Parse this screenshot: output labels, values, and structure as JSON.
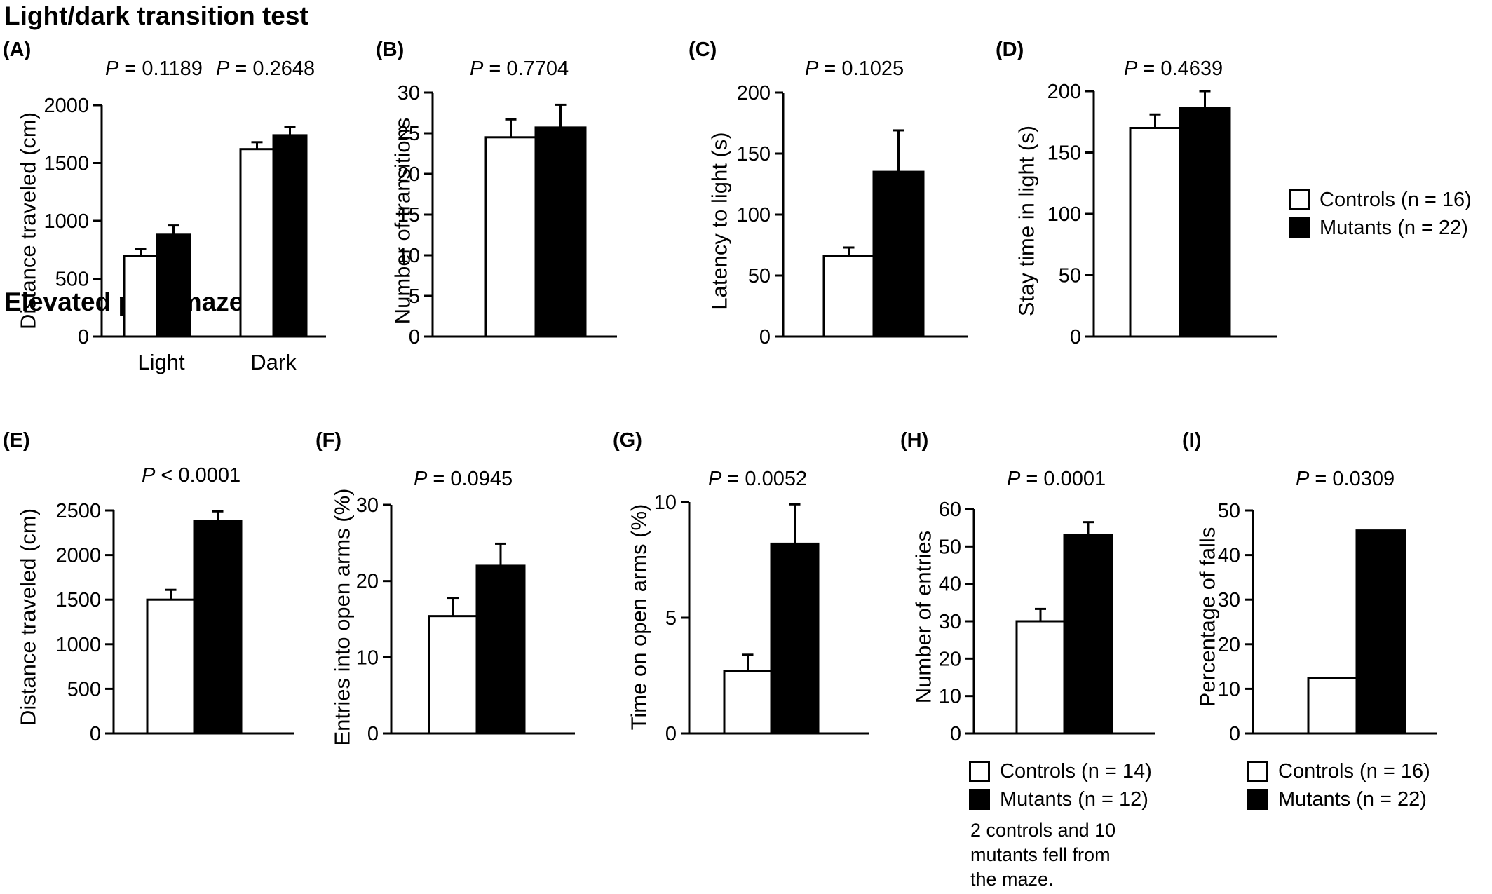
{
  "sections": {
    "light_dark": "Light/dark transition test",
    "plus_maze": "Elevated plus maze test"
  },
  "legends": {
    "top": [
      "Controls (n = 16)",
      "Mutants (n = 22)"
    ],
    "h": [
      "Controls (n = 14)",
      "Mutants (n = 12)"
    ],
    "i": [
      "Controls (n = 16)",
      "Mutants (n = 22)"
    ]
  },
  "note_h": "2 controls and 10 mutants fell from the maze.",
  "colors": {
    "controls": "#ffffff",
    "mutants": "#000000",
    "axis": "#000000"
  },
  "chart_data": [
    {
      "label": "(A)",
      "type": "bar",
      "ylabel": "Distance traveled (cm)",
      "ylim": [
        0,
        2000
      ],
      "yticks": [
        0,
        500,
        1000,
        1500,
        2000
      ],
      "categories": [
        "Light",
        "Dark"
      ],
      "p_values": [
        "P = 0.1189",
        "P = 0.2648"
      ],
      "series": [
        {
          "name": "Controls",
          "values": [
            700,
            1620
          ],
          "errors": [
            60,
            60
          ]
        },
        {
          "name": "Mutants",
          "values": [
            880,
            1740
          ],
          "errors": [
            80,
            70
          ]
        }
      ]
    },
    {
      "label": "(B)",
      "type": "bar",
      "ylabel": "Number of transitions",
      "ylim": [
        0,
        30
      ],
      "yticks": [
        0,
        5,
        10,
        15,
        20,
        25,
        30
      ],
      "p_values": [
        "P = 0.7704"
      ],
      "series": [
        {
          "name": "Controls",
          "values": [
            24.5
          ],
          "errors": [
            2.2
          ]
        },
        {
          "name": "Mutants",
          "values": [
            25.7
          ],
          "errors": [
            2.8
          ]
        }
      ]
    },
    {
      "label": "(C)",
      "type": "bar",
      "ylabel": "Latency to light (s)",
      "ylim": [
        0,
        200
      ],
      "yticks": [
        0,
        50,
        100,
        150,
        200
      ],
      "p_values": [
        "P = 0.1025"
      ],
      "series": [
        {
          "name": "Controls",
          "values": [
            66
          ],
          "errors": [
            7
          ]
        },
        {
          "name": "Mutants",
          "values": [
            135
          ],
          "errors": [
            34
          ]
        }
      ]
    },
    {
      "label": "(D)",
      "type": "bar",
      "ylabel": "Stay time in light (s)",
      "ylim": [
        0,
        200
      ],
      "yticks": [
        0,
        50,
        100,
        150,
        200
      ],
      "p_values": [
        "P = 0.4639"
      ],
      "series": [
        {
          "name": "Controls",
          "values": [
            170
          ],
          "errors": [
            11
          ]
        },
        {
          "name": "Mutants",
          "values": [
            186
          ],
          "errors": [
            14
          ]
        }
      ]
    },
    {
      "label": "(E)",
      "type": "bar",
      "ylabel": "Distance traveled (cm)",
      "ylim": [
        0,
        2500
      ],
      "yticks": [
        0,
        500,
        1000,
        1500,
        2000,
        2500
      ],
      "p_values": [
        "P < 0.0001"
      ],
      "series": [
        {
          "name": "Controls",
          "values": [
            1500
          ],
          "errors": [
            110
          ]
        },
        {
          "name": "Mutants",
          "values": [
            2380
          ],
          "errors": [
            110
          ]
        }
      ]
    },
    {
      "label": "(F)",
      "type": "bar",
      "ylabel": "Entries into open arms (%)",
      "ylim": [
        0,
        30
      ],
      "yticks": [
        0,
        10,
        20,
        30
      ],
      "p_values": [
        "P = 0.0945"
      ],
      "series": [
        {
          "name": "Controls",
          "values": [
            15.4
          ],
          "errors": [
            2.4
          ]
        },
        {
          "name": "Mutants",
          "values": [
            22
          ],
          "errors": [
            2.9
          ]
        }
      ]
    },
    {
      "label": "(G)",
      "type": "bar",
      "ylabel": "Time on open arms (%)",
      "ylim": [
        0,
        10
      ],
      "yticks": [
        0,
        5,
        10
      ],
      "p_values": [
        "P = 0.0052"
      ],
      "series": [
        {
          "name": "Controls",
          "values": [
            2.7
          ],
          "errors": [
            0.7
          ]
        },
        {
          "name": "Mutants",
          "values": [
            8.2
          ],
          "errors": [
            1.7
          ]
        }
      ]
    },
    {
      "label": "(H)",
      "type": "bar",
      "ylabel": "Number of entries",
      "ylim": [
        0,
        60
      ],
      "yticks": [
        0,
        10,
        20,
        30,
        40,
        50,
        60
      ],
      "p_values": [
        "P = 0.0001"
      ],
      "series": [
        {
          "name": "Controls",
          "values": [
            30
          ],
          "errors": [
            3.3
          ]
        },
        {
          "name": "Mutants",
          "values": [
            53
          ],
          "errors": [
            3.5
          ]
        }
      ]
    },
    {
      "label": "(I)",
      "type": "bar",
      "ylabel": "Percentage of falls",
      "ylim": [
        0,
        50
      ],
      "yticks": [
        0,
        10,
        20,
        30,
        40,
        50
      ],
      "p_values": [
        "P = 0.0309"
      ],
      "series": [
        {
          "name": "Controls",
          "values": [
            12.5
          ]
        },
        {
          "name": "Mutants",
          "values": [
            45.5
          ]
        }
      ]
    }
  ]
}
